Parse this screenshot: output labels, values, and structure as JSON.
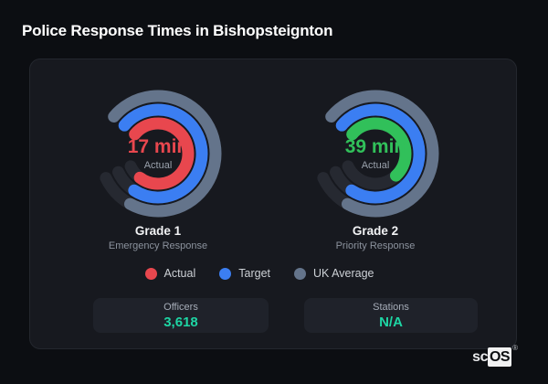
{
  "page": {
    "title": "Police Response Times in Bishopsteignton"
  },
  "chart_data": {
    "type": "radial_gauge",
    "title": "Police Response Times in Bishopsteignton",
    "legend_position": "bottom",
    "legend": [
      {
        "label": "Actual",
        "color": "#e8474e"
      },
      {
        "label": "Target",
        "color": "#3b7ef2"
      },
      {
        "label": "UK Average",
        "color": "#64748b"
      }
    ],
    "track": {
      "start_deg": -50,
      "span_deg": 295,
      "color": "#262931",
      "stroke_width": 13
    },
    "gauges": [
      {
        "grade": "Grade 1",
        "category": "Emergency Response",
        "value_label": "17 min",
        "value_minutes": 17,
        "value_color": "#e8474e",
        "center_sublabel": "Actual",
        "rings": [
          {
            "name": "UK Average",
            "color": "#64748b",
            "radius": 63,
            "sweep_deg": 259
          },
          {
            "name": "Target",
            "color": "#3b7ef2",
            "radius": 48,
            "sweep_deg": 263
          },
          {
            "name": "Actual",
            "color": "#e8474e",
            "radius": 33,
            "sweep_deg": 267
          }
        ]
      },
      {
        "grade": "Grade 2",
        "category": "Priority Response",
        "value_label": "39 min",
        "value_minutes": 39,
        "value_color": "#31c05a",
        "center_sublabel": "Actual",
        "rings": [
          {
            "name": "UK Average",
            "color": "#64748b",
            "radius": 63,
            "sweep_deg": 259
          },
          {
            "name": "Target",
            "color": "#3b7ef2",
            "radius": 48,
            "sweep_deg": 263
          },
          {
            "name": "Actual",
            "color": "#31c05a",
            "radius": 33,
            "sweep_deg": 187
          }
        ]
      }
    ]
  },
  "stats": [
    {
      "label": "Officers",
      "value": "3,618"
    },
    {
      "label": "Stations",
      "value": "N/A"
    }
  ],
  "colors": {
    "stat_accent": "#1ed5a4"
  },
  "branding": {
    "prefix": "sc",
    "suffix": "OS",
    "registered": "®"
  }
}
